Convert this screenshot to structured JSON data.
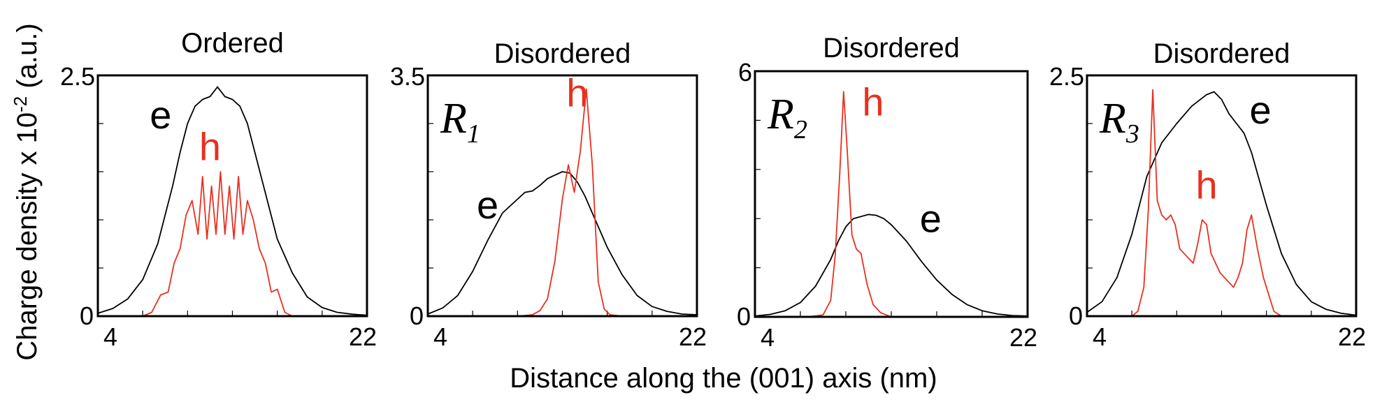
{
  "chart_data": {
    "type": "line",
    "ylabel_parts": {
      "main": "Charge density  x 10",
      "exp": "-2",
      "unit": " (a.u.)"
    },
    "xlabel": "Distance along the (001) axis (nm)",
    "colors": {
      "e": "#000000",
      "h": "#e8301f",
      "axes": "#000000"
    },
    "panels": [
      {
        "title": "Ordered",
        "label": "",
        "label_sub": "",
        "xlim": [
          4,
          22
        ],
        "ylim": [
          0,
          2.5
        ],
        "xtick_labels": [
          "4",
          "22"
        ],
        "ytick_labels": [
          "0",
          "2.5"
        ],
        "series": [
          {
            "name": "e",
            "x": [
              4,
              5,
              6,
              7,
              8,
              9,
              9.5,
              10,
              10.5,
              11,
              11.5,
              12,
              12.5,
              13,
              13.5,
              14,
              14.5,
              15,
              15.5,
              16,
              17,
              18,
              19,
              20,
              21,
              22
            ],
            "y": [
              0.03,
              0.08,
              0.18,
              0.38,
              0.75,
              1.35,
              1.7,
              2.0,
              2.18,
              2.25,
              2.28,
              2.38,
              2.28,
              2.25,
              2.18,
              2.0,
              1.7,
              1.4,
              1.1,
              0.8,
              0.45,
              0.2,
              0.09,
              0.04,
              0.02,
              0.01
            ]
          },
          {
            "name": "h",
            "x": [
              4,
              7.0,
              7.6,
              8.2,
              8.7,
              9.1,
              9.5,
              9.9,
              10.3,
              10.7,
              11.0,
              11.3,
              11.6,
              11.9,
              12.2,
              12.5,
              12.8,
              13.1,
              13.4,
              13.7,
              14.0,
              14.4,
              14.8,
              15.2,
              15.6,
              16.0,
              16.5,
              17,
              22
            ],
            "y": [
              0,
              0,
              0.04,
              0.22,
              0.25,
              0.55,
              0.7,
              1.05,
              1.2,
              0.85,
              1.45,
              0.8,
              1.35,
              0.85,
              1.5,
              0.85,
              1.35,
              0.8,
              1.45,
              0.85,
              1.2,
              1.0,
              0.7,
              0.55,
              0.25,
              0.28,
              0.04,
              0,
              0
            ]
          }
        ],
        "labels": [
          {
            "series": "e",
            "text": "e",
            "x": 8.2,
            "y": 1.95
          },
          {
            "series": "h",
            "text": "h",
            "x": 11.5,
            "y": 1.62
          }
        ]
      },
      {
        "title": "Disordered",
        "label": "R",
        "label_sub": "1",
        "xlim": [
          4,
          22
        ],
        "ylim": [
          0,
          3.5
        ],
        "xtick_labels": [
          "4",
          "22"
        ],
        "ytick_labels": [
          "0",
          "3.5"
        ],
        "series": [
          {
            "name": "e",
            "x": [
              4,
              5,
              6,
              7,
              8,
              9,
              10,
              10.5,
              11,
              11.5,
              12,
              12.5,
              13,
              13.5,
              14,
              14.5,
              15,
              16,
              17,
              18,
              19,
              20,
              21,
              22
            ],
            "y": [
              0.03,
              0.12,
              0.3,
              0.65,
              1.1,
              1.5,
              1.7,
              1.8,
              1.82,
              1.9,
              2.0,
              2.05,
              2.1,
              2.08,
              1.95,
              1.75,
              1.5,
              1.0,
              0.6,
              0.3,
              0.14,
              0.07,
              0.03,
              0.02
            ]
          },
          {
            "name": "h",
            "x": [
              4,
              10,
              11,
              11.5,
              12,
              12.5,
              13,
              13.4,
              13.8,
              14.2,
              14.6,
              15.0,
              15.4,
              15.8,
              16.2,
              17,
              22
            ],
            "y": [
              0,
              0,
              0.02,
              0.08,
              0.25,
              0.8,
              1.7,
              2.2,
              1.8,
              2.4,
              3.3,
              2.2,
              0.5,
              0.1,
              0.02,
              0,
              0
            ]
          }
        ],
        "labels": [
          {
            "series": "e",
            "text": "e",
            "x": 8.0,
            "y": 1.42
          },
          {
            "series": "h",
            "text": "h",
            "x": 14.0,
            "y": 3.05
          }
        ]
      },
      {
        "title": "Disordered",
        "label": "R",
        "label_sub": "2",
        "xlim": [
          4,
          22
        ],
        "ylim": [
          0,
          6
        ],
        "xtick_labels": [
          "4",
          "22"
        ],
        "ytick_labels": [
          "0",
          "6"
        ],
        "series": [
          {
            "name": "e",
            "x": [
              4,
              5,
              6,
              7,
              8,
              9,
              9.5,
              10,
              10.5,
              11,
              11.5,
              12,
              12.5,
              13,
              14,
              15,
              16,
              17,
              18,
              19,
              20,
              21,
              22
            ],
            "y": [
              0.02,
              0.06,
              0.15,
              0.35,
              0.75,
              1.4,
              1.85,
              2.2,
              2.4,
              2.45,
              2.5,
              2.48,
              2.4,
              2.25,
              1.85,
              1.35,
              0.9,
              0.55,
              0.3,
              0.15,
              0.07,
              0.03,
              0.02
            ]
          },
          {
            "name": "h",
            "x": [
              4,
              7.5,
              8.5,
              9.0,
              9.3,
              9.6,
              9.85,
              10.1,
              10.4,
              10.7,
              11.0,
              11.4,
              11.8,
              12.3,
              13,
              22
            ],
            "y": [
              0,
              0,
              0.05,
              0.4,
              1.5,
              3.5,
              5.5,
              4.0,
              2.0,
              1.65,
              1.55,
              0.8,
              0.3,
              0.1,
              0,
              0
            ]
          }
        ],
        "labels": [
          {
            "series": "e",
            "text": "e",
            "x": 15.6,
            "y": 2.07
          },
          {
            "series": "h",
            "text": "h",
            "x": 11.8,
            "y": 4.92
          }
        ]
      },
      {
        "title": "Disordered",
        "label": "R",
        "label_sub": "3",
        "xlim": [
          4,
          22
        ],
        "ylim": [
          0,
          2.5
        ],
        "xtick_labels": [
          "4",
          "22"
        ],
        "ytick_labels": [
          "0",
          "2.5"
        ],
        "series": [
          {
            "name": "e",
            "x": [
              4,
              5,
              6,
              7,
              8,
              9,
              10,
              11,
              12,
              12.5,
              13,
              13.5,
              14,
              14.5,
              15,
              16,
              17,
              18,
              19,
              20,
              21,
              22
            ],
            "y": [
              0.04,
              0.15,
              0.4,
              0.85,
              1.45,
              1.8,
              2.0,
              2.18,
              2.3,
              2.33,
              2.25,
              2.1,
              2.0,
              1.9,
              1.7,
              1.15,
              0.65,
              0.33,
              0.15,
              0.07,
              0.03,
              0.01
            ]
          },
          {
            "name": "h",
            "x": [
              4,
              7.0,
              7.4,
              7.8,
              8.1,
              8.4,
              8.7,
              9.0,
              9.3,
              9.6,
              9.9,
              10.2,
              10.5,
              10.8,
              11.1,
              11.4,
              11.7,
              12.0,
              12.3,
              12.6,
              12.9,
              13.2,
              13.5,
              13.8,
              14.1,
              14.4,
              14.7,
              15.0,
              15.4,
              15.8,
              16.5,
              17,
              22
            ],
            "y": [
              0,
              0,
              0.05,
              0.3,
              1.1,
              2.35,
              1.2,
              1.05,
              1.0,
              1.05,
              0.95,
              0.7,
              0.65,
              0.6,
              0.55,
              0.75,
              1.0,
              0.95,
              0.65,
              0.55,
              0.45,
              0.4,
              0.35,
              0.3,
              0.4,
              0.55,
              0.9,
              1.05,
              0.7,
              0.4,
              0.05,
              0,
              0
            ]
          }
        ],
        "labels": [
          {
            "series": "e",
            "text": "e",
            "x": 15.6,
            "y": 2.0
          },
          {
            "series": "h",
            "text": "h",
            "x": 12.0,
            "y": 1.22
          }
        ]
      }
    ]
  }
}
